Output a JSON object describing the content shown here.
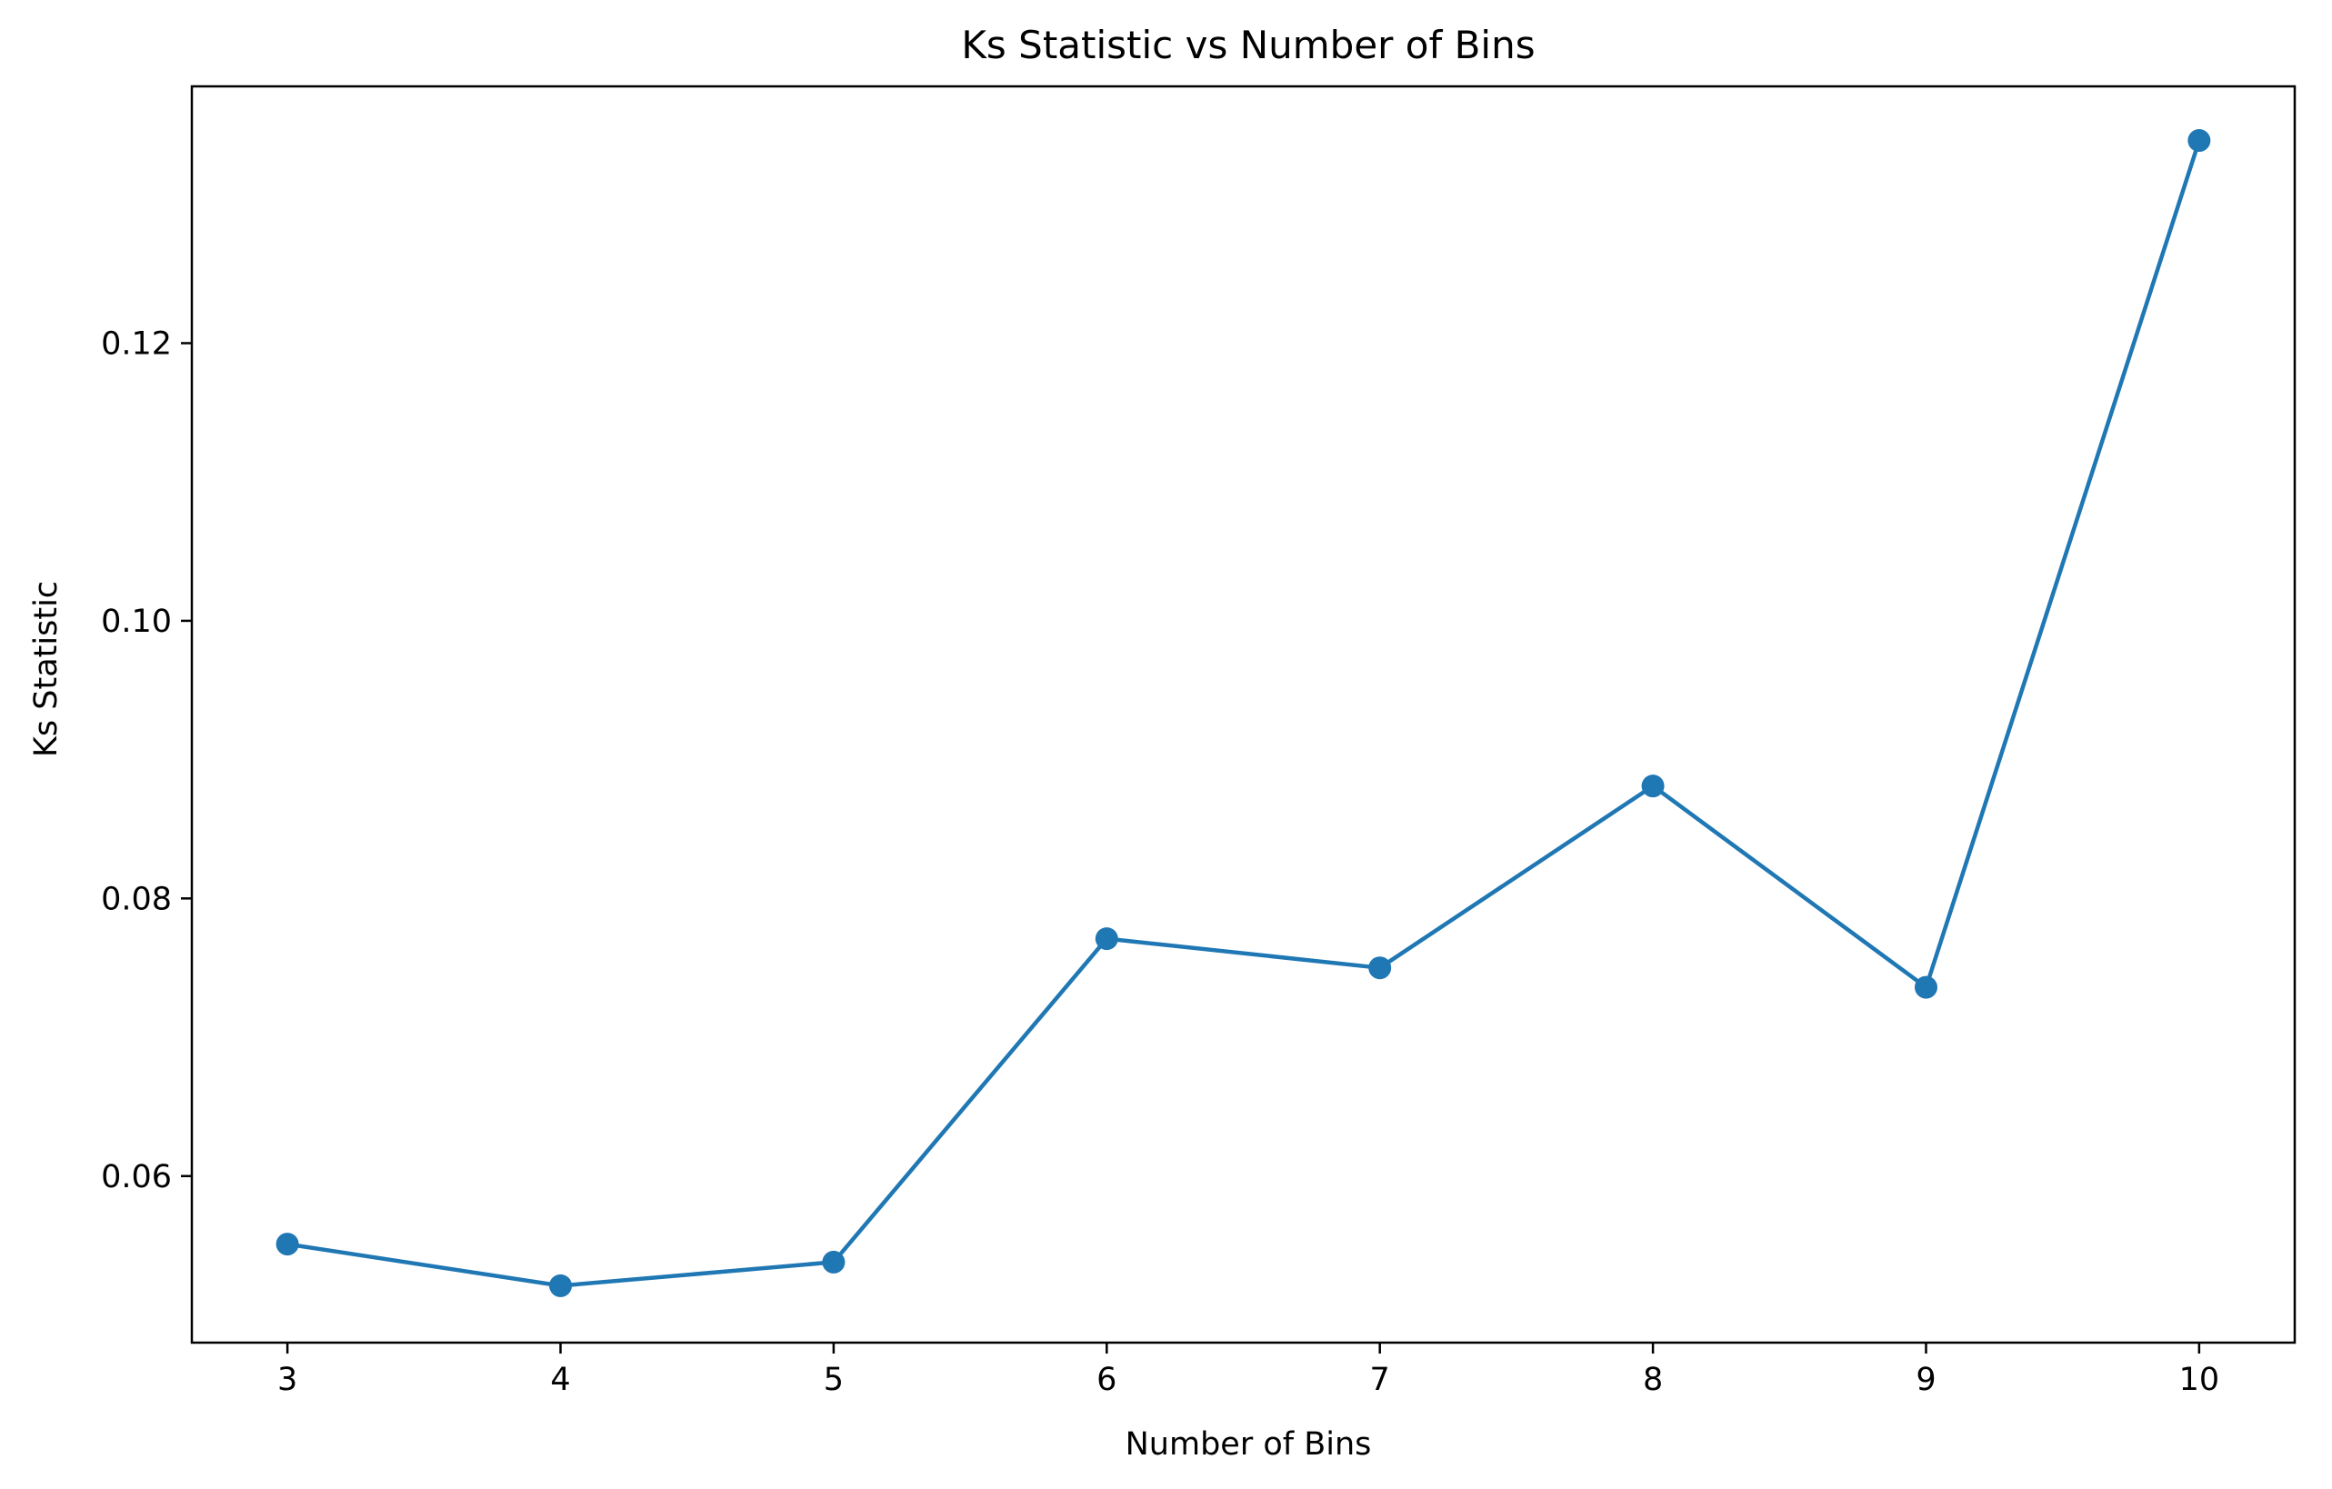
{
  "chart_data": {
    "type": "line",
    "title": "Ks Statistic vs Number of Bins",
    "xlabel": "Number of Bins",
    "ylabel": "Ks Statistic",
    "x": [
      3,
      4,
      5,
      6,
      7,
      8,
      9,
      10
    ],
    "series": [
      {
        "values": [
          0.0551,
          0.0521,
          0.0538,
          0.0771,
          0.075,
          0.0881,
          0.0736,
          0.1346
        ]
      }
    ],
    "xlim": [
      2.65,
      10.35
    ],
    "ylim": [
      0.048,
      0.1385
    ],
    "xticks": [
      "3",
      "4",
      "5",
      "6",
      "7",
      "8",
      "9",
      "10"
    ],
    "yticks": [
      "0.06",
      "0.08",
      "0.10",
      "0.12"
    ],
    "grid": false,
    "colors": {
      "line": "#1f77b4"
    },
    "markers": "circle"
  }
}
